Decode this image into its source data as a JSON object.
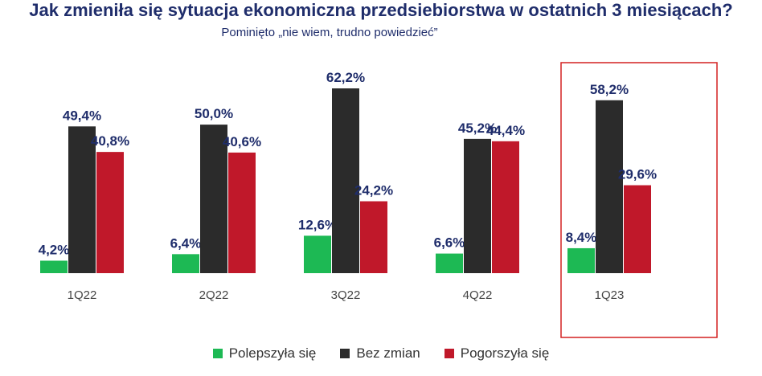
{
  "header": {
    "title": "Jak zmieniła się sytuacja ekonomiczna przedsiebiorstwa w ostatnich 3 miesiącach?",
    "subtitle": "Pominięto „nie wiem, trudno powiedzieć”"
  },
  "colors": {
    "improved": "#1db954",
    "unchanged": "#2b2b2b",
    "worsened": "#c0182a",
    "label": "#1f2d6b",
    "highlight_box": "#d42020"
  },
  "chart_data": {
    "type": "bar",
    "title": "Jak zmieniła się sytuacja ekonomiczna przedsiebiorstwa w ostatnich 3 miesiącach?",
    "subtitle": "Pominięto „nie wiem, trudno powiedzieć”",
    "categories": [
      "1Q22",
      "2Q22",
      "3Q22",
      "4Q22",
      "1Q23"
    ],
    "series": [
      {
        "name": "Polepszyła się",
        "values": [
          4.2,
          6.4,
          12.6,
          6.6,
          8.4
        ],
        "labels": [
          "4,2%",
          "6,4%",
          "12,6%",
          "6,6%",
          "8,4%"
        ]
      },
      {
        "name": "Bez zmian",
        "values": [
          49.4,
          50.0,
          62.2,
          45.2,
          58.2
        ],
        "labels": [
          "49,4%",
          "50,0%",
          "62,2%",
          "45,2%",
          "58,2%"
        ]
      },
      {
        "name": "Pogorszyła się",
        "values": [
          40.8,
          40.6,
          24.2,
          44.4,
          29.6
        ],
        "labels": [
          "40,8%",
          "40,6%",
          "24,2%",
          "44,4%",
          "29,6%"
        ]
      }
    ],
    "xlabel": "",
    "ylabel": "",
    "ylim": [
      0,
      62.2
    ],
    "grid": false,
    "legend_position": "bottom",
    "highlighted_category": "1Q23"
  }
}
